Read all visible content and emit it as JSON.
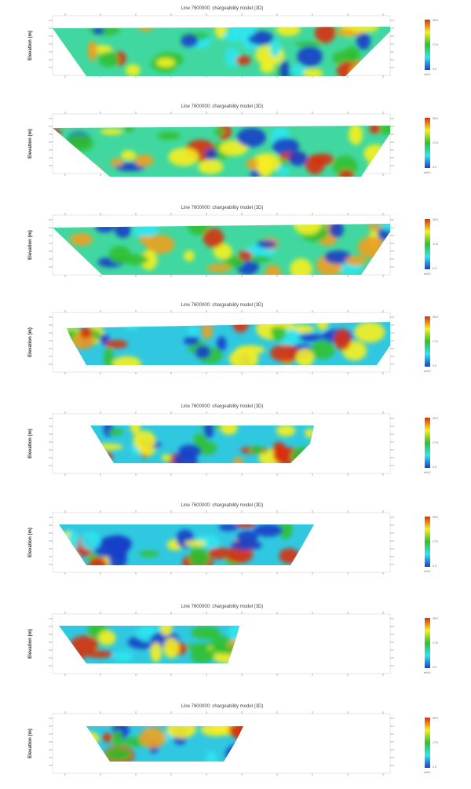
{
  "chart_data": [
    {
      "type": "heatmap",
      "title": "Line 7600000: chargeability model (3D)",
      "ylabel": "Elevation (m)",
      "colorbar": {
        "ticks": [
          "35.0",
          "17.5",
          "0.0"
        ],
        "unit": "mV/V",
        "range": [
          0,
          35
        ]
      }
    },
    {
      "type": "heatmap",
      "title": "Line 7600000: chargeability model (3D)",
      "ylabel": "Elevation (m)",
      "colorbar": {
        "ticks": [
          "35.0",
          "17.5",
          "0.0"
        ],
        "unit": "mV/V",
        "range": [
          0,
          35
        ]
      }
    },
    {
      "type": "heatmap",
      "title": "Line 7600000: chargeability model (3D)",
      "ylabel": "Elevation (m)",
      "colorbar": {
        "ticks": [
          "35.0",
          "17.5",
          "0.0"
        ],
        "unit": "mV/V",
        "range": [
          0,
          35
        ]
      }
    },
    {
      "type": "heatmap",
      "title": "Line 7600000: chargeability model (3D)",
      "ylabel": "Elevation (m)",
      "colorbar": {
        "ticks": [
          "35.0",
          "17.5",
          "0.0"
        ],
        "unit": "mV/V",
        "range": [
          0,
          35
        ]
      }
    },
    {
      "type": "heatmap",
      "title": "Line 7600000: chargeability model (3D)",
      "ylabel": "Elevation (m)",
      "colorbar": {
        "ticks": [
          "35.0",
          "17.5",
          "0.0"
        ],
        "unit": "mV/V",
        "range": [
          0,
          35
        ]
      }
    },
    {
      "type": "heatmap",
      "title": "Line 7600000: chargeability model (3D)",
      "ylabel": "Elevation (m)",
      "colorbar": {
        "ticks": [
          "35.0",
          "17.5",
          "0.0"
        ],
        "unit": "mV/V",
        "range": [
          0,
          35
        ]
      }
    },
    {
      "type": "heatmap",
      "title": "Line 7600000: chargeability model (3D)",
      "ylabel": "Elevation (m)",
      "colorbar": {
        "ticks": [
          "35.0",
          "17.5",
          "0.0"
        ],
        "unit": "mV/V",
        "range": [
          0,
          35
        ]
      }
    },
    {
      "type": "heatmap",
      "title": "Line 7600000: chargeability model (3D)",
      "ylabel": "Elevation (m)",
      "colorbar": {
        "ticks": [
          "35.0",
          "17.5",
          "0.0"
        ],
        "unit": "mV/V",
        "range": [
          0,
          35
        ]
      }
    }
  ]
}
